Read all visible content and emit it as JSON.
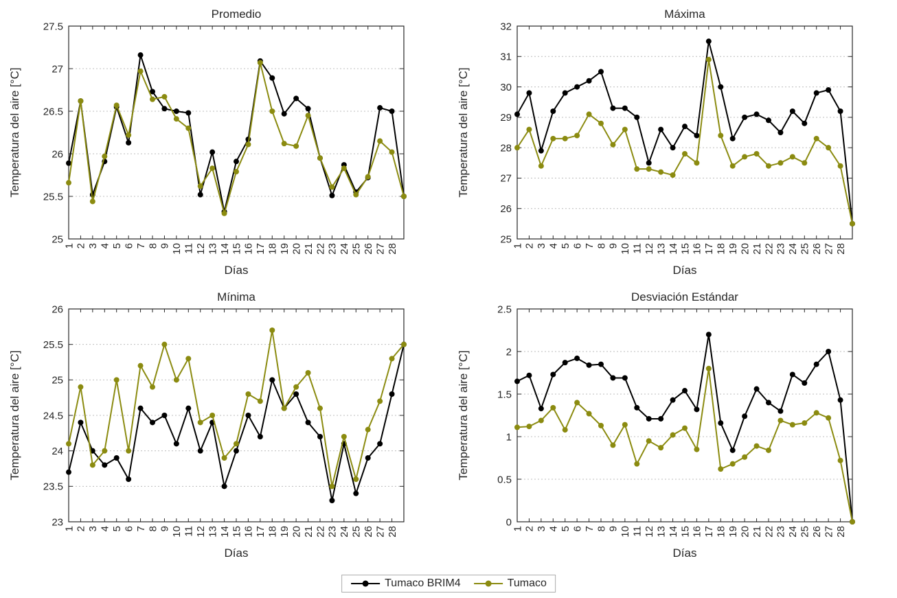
{
  "figure": {
    "background": "#ffffff",
    "axis_color": "#262626",
    "grid_color": "#bcbcbc"
  },
  "legend": {
    "items": [
      {
        "label": "Tumaco BRIM4",
        "color": "#000000"
      },
      {
        "label": "Tumaco",
        "color": "#8B8B10"
      }
    ]
  },
  "chart_data": [
    {
      "type": "line",
      "title": "Promedio",
      "xlabel": "Días",
      "ylabel": "Temperatura del aire [°C]",
      "xlim": [
        1,
        29
      ],
      "ylim": [
        25,
        27.5
      ],
      "yticks": [
        25,
        25.5,
        26,
        26.5,
        27,
        27.5
      ],
      "grid": "horizontal-dashed",
      "legend_position": "south-outside-shared",
      "x": [
        1,
        2,
        3,
        4,
        5,
        6,
        7,
        8,
        9,
        10,
        11,
        12,
        13,
        14,
        15,
        16,
        17,
        18,
        19,
        20,
        21,
        22,
        23,
        24,
        25,
        26,
        27,
        28,
        29
      ],
      "xtick_labels": [
        "1",
        "2",
        "3",
        "4",
        "5",
        "6",
        "7",
        "8",
        "9",
        "10",
        "11",
        "12",
        "13",
        "14",
        "15",
        "16",
        "17",
        "18",
        "19",
        "20",
        "21",
        "22",
        "23",
        "24",
        "25",
        "26",
        "27",
        "28"
      ],
      "series": [
        {
          "name": "Tumaco BRIM4",
          "color": "#000000",
          "values": [
            25.89,
            26.62,
            25.52,
            25.91,
            26.55,
            26.13,
            27.16,
            26.73,
            26.53,
            26.5,
            26.48,
            25.52,
            26.02,
            25.32,
            25.91,
            26.17,
            27.09,
            26.89,
            26.47,
            26.65,
            26.53,
            25.95,
            25.51,
            25.87,
            25.55,
            25.72,
            26.54,
            26.5,
            25.5
          ]
        },
        {
          "name": "Tumaco",
          "color": "#8B8B10",
          "values": [
            25.66,
            26.62,
            25.44,
            25.97,
            26.57,
            26.22,
            26.97,
            26.64,
            26.67,
            26.41,
            26.3,
            25.62,
            25.83,
            25.3,
            25.79,
            26.11,
            27.07,
            26.5,
            26.12,
            26.09,
            26.45,
            25.95,
            25.61,
            25.83,
            25.52,
            25.73,
            26.15,
            26.02,
            25.5
          ]
        }
      ]
    },
    {
      "type": "line",
      "title": "Máxima",
      "xlabel": "Días",
      "ylabel": "Temperatura del aire [°C]",
      "xlim": [
        1,
        29
      ],
      "ylim": [
        25,
        32
      ],
      "yticks": [
        25,
        26,
        27,
        28,
        29,
        30,
        31,
        32
      ],
      "grid": "horizontal-dashed",
      "x": [
        1,
        2,
        3,
        4,
        5,
        6,
        7,
        8,
        9,
        10,
        11,
        12,
        13,
        14,
        15,
        16,
        17,
        18,
        19,
        20,
        21,
        22,
        23,
        24,
        25,
        26,
        27,
        28,
        29
      ],
      "xtick_labels": [
        "1",
        "2",
        "3",
        "4",
        "5",
        "6",
        "7",
        "8",
        "9",
        "10",
        "11",
        "12",
        "13",
        "14",
        "15",
        "16",
        "17",
        "18",
        "19",
        "20",
        "21",
        "22",
        "23",
        "24",
        "25",
        "26",
        "27",
        "28"
      ],
      "series": [
        {
          "name": "Tumaco BRIM4",
          "color": "#000000",
          "values": [
            29.1,
            29.8,
            27.9,
            29.2,
            29.8,
            30.0,
            30.2,
            30.5,
            29.3,
            29.3,
            29.0,
            27.5,
            28.6,
            28.0,
            28.7,
            28.4,
            31.5,
            30.0,
            28.3,
            29.0,
            29.1,
            28.9,
            28.5,
            29.2,
            28.8,
            29.8,
            29.9,
            29.2,
            25.5
          ]
        },
        {
          "name": "Tumaco",
          "color": "#8B8B10",
          "values": [
            28.0,
            28.6,
            27.4,
            28.3,
            28.3,
            28.4,
            29.1,
            28.8,
            28.1,
            28.6,
            27.3,
            27.3,
            27.2,
            27.1,
            27.8,
            27.5,
            30.9,
            28.4,
            27.4,
            27.7,
            27.8,
            27.4,
            27.5,
            27.7,
            27.5,
            28.3,
            28.0,
            27.4,
            25.5
          ]
        }
      ]
    },
    {
      "type": "line",
      "title": "Mínima",
      "xlabel": "Días",
      "ylabel": "Temperatura del aire [°C]",
      "xlim": [
        1,
        29
      ],
      "ylim": [
        23,
        26
      ],
      "yticks": [
        23,
        23.5,
        24,
        24.5,
        25,
        25.5,
        26
      ],
      "grid": "horizontal-dashed",
      "x": [
        1,
        2,
        3,
        4,
        5,
        6,
        7,
        8,
        9,
        10,
        11,
        12,
        13,
        14,
        15,
        16,
        17,
        18,
        19,
        20,
        21,
        22,
        23,
        24,
        25,
        26,
        27,
        28,
        29
      ],
      "xtick_labels": [
        "1",
        "2",
        "3",
        "4",
        "5",
        "6",
        "7",
        "8",
        "9",
        "10",
        "11",
        "12",
        "13",
        "14",
        "15",
        "16",
        "17",
        "18",
        "19",
        "20",
        "21",
        "22",
        "23",
        "24",
        "25",
        "26",
        "27",
        "28"
      ],
      "series": [
        {
          "name": "Tumaco BRIM4",
          "color": "#000000",
          "values": [
            23.7,
            24.4,
            24.0,
            23.8,
            23.9,
            23.6,
            24.6,
            24.4,
            24.5,
            24.1,
            24.6,
            24.0,
            24.4,
            23.5,
            24.0,
            24.5,
            24.2,
            25.0,
            24.6,
            24.8,
            24.4,
            24.2,
            23.3,
            24.1,
            23.4,
            23.9,
            24.1,
            24.8,
            25.5
          ]
        },
        {
          "name": "Tumaco",
          "color": "#8B8B10",
          "values": [
            24.1,
            24.9,
            23.8,
            24.0,
            25.0,
            24.0,
            25.2,
            24.9,
            25.5,
            25.0,
            25.3,
            24.4,
            24.5,
            23.9,
            24.1,
            24.8,
            24.7,
            25.7,
            24.6,
            24.9,
            25.1,
            24.6,
            23.5,
            24.2,
            23.6,
            24.3,
            24.7,
            25.3,
            25.5
          ]
        }
      ]
    },
    {
      "type": "line",
      "title": "Desviación Estándar",
      "xlabel": "Días",
      "ylabel": "Temperatura del aire [°C]",
      "xlim": [
        1,
        29
      ],
      "ylim": [
        0,
        2.5
      ],
      "yticks": [
        0,
        0.5,
        1,
        1.5,
        2,
        2.5
      ],
      "grid": "horizontal-dashed",
      "x": [
        1,
        2,
        3,
        4,
        5,
        6,
        7,
        8,
        9,
        10,
        11,
        12,
        13,
        14,
        15,
        16,
        17,
        18,
        19,
        20,
        21,
        22,
        23,
        24,
        25,
        26,
        27,
        28,
        29
      ],
      "xtick_labels": [
        "1",
        "2",
        "3",
        "4",
        "5",
        "6",
        "7",
        "8",
        "9",
        "10",
        "11",
        "12",
        "13",
        "14",
        "15",
        "16",
        "17",
        "18",
        "19",
        "20",
        "21",
        "22",
        "23",
        "24",
        "25",
        "26",
        "27",
        "28"
      ],
      "series": [
        {
          "name": "Tumaco BRIM4",
          "color": "#000000",
          "values": [
            1.65,
            1.72,
            1.33,
            1.73,
            1.87,
            1.92,
            1.84,
            1.85,
            1.69,
            1.69,
            1.34,
            1.21,
            1.21,
            1.43,
            1.54,
            1.32,
            2.2,
            1.16,
            0.84,
            1.24,
            1.56,
            1.4,
            1.3,
            1.73,
            1.63,
            1.85,
            2.0,
            1.43,
            0.0
          ]
        },
        {
          "name": "Tumaco",
          "color": "#8B8B10",
          "values": [
            1.11,
            1.12,
            1.19,
            1.34,
            1.08,
            1.4,
            1.27,
            1.13,
            0.9,
            1.14,
            0.68,
            0.95,
            0.87,
            1.02,
            1.1,
            0.85,
            1.8,
            0.62,
            0.68,
            0.76,
            0.89,
            0.84,
            1.19,
            1.14,
            1.16,
            1.28,
            1.22,
            0.72,
            0.0
          ]
        }
      ]
    }
  ]
}
